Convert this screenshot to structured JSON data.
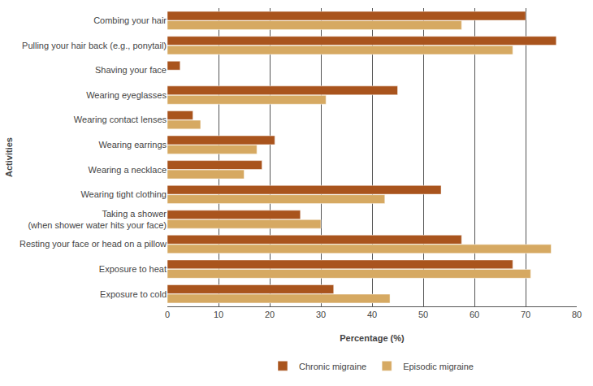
{
  "chart_data": {
    "type": "bar",
    "orientation": "horizontal",
    "x_label": "Percentage (%)",
    "y_label": "Activities",
    "categories": [
      "Combing your hair",
      "Pulling your hair back (e.g., ponytail)",
      "Shaving your face",
      "Wearing eyeglasses",
      "Wearing contact lenses",
      "Wearing earrings",
      "Wearing a necklace",
      "Wearing tight clothing",
      "Taking a shower\n(when shower water hits your face)",
      "Resting your face or head on a pillow",
      "Exposure to heat",
      "Exposure to cold"
    ],
    "series": [
      {
        "name": "Chronic migraine",
        "color": "#a9541d",
        "values": [
          70,
          76,
          2.5,
          45,
          5,
          21,
          18.5,
          53.5,
          26,
          57.5,
          67.5,
          32.5
        ]
      },
      {
        "name": "Episodic migraine",
        "color": "#d6a962",
        "values": [
          57.5,
          67.5,
          0,
          31,
          6.5,
          17.5,
          15,
          42.5,
          30,
          75,
          71,
          43.5
        ]
      }
    ],
    "xlim": [
      0,
      80
    ],
    "xticks": [
      0,
      10,
      20,
      30,
      40,
      50,
      60,
      70,
      80
    ],
    "grid": true,
    "legend": "bottom"
  }
}
